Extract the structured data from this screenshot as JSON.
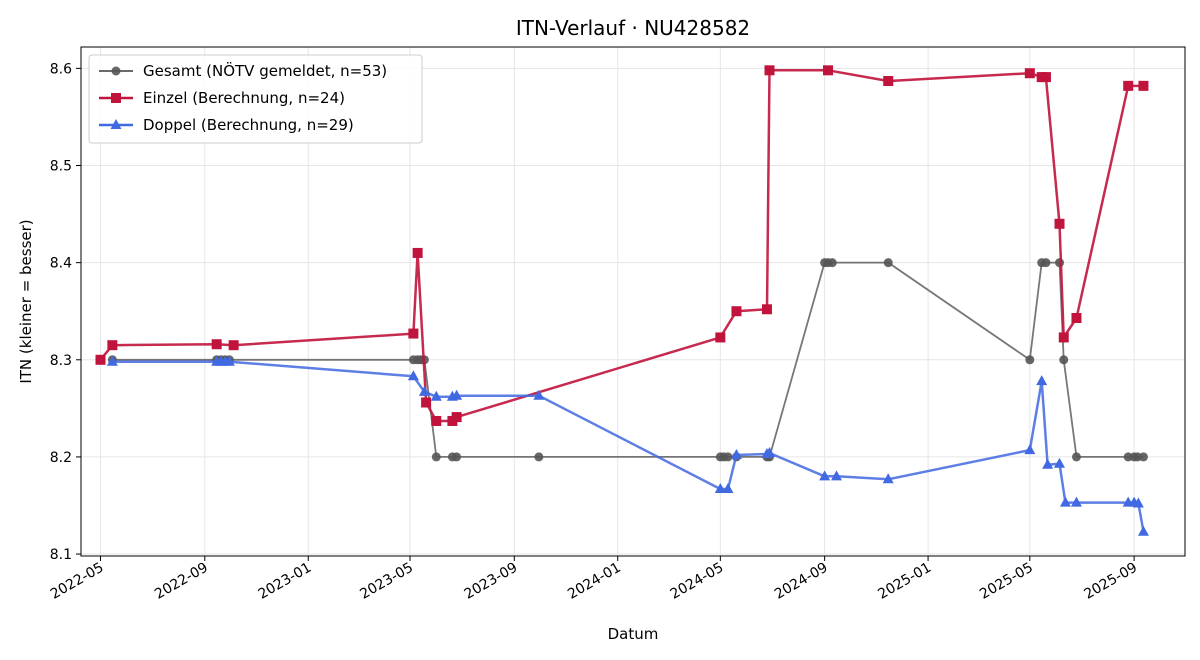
{
  "chart_data": {
    "type": "line",
    "title": "ITN-Verlauf · NU428582",
    "xlabel": "Datum",
    "ylabel": "ITN  (kleiner = besser)",
    "x_axis_type": "date",
    "xlim": [
      "2022-04-08",
      "2025-10-31"
    ],
    "ylim": [
      8.098,
      8.622
    ],
    "grid": true,
    "legend_position": "top-left",
    "x_ticks": [
      {
        "date": "2022-05-01",
        "label": "2022-05"
      },
      {
        "date": "2022-09-01",
        "label": "2022-09"
      },
      {
        "date": "2023-01-01",
        "label": "2023-01"
      },
      {
        "date": "2023-05-01",
        "label": "2023-05"
      },
      {
        "date": "2023-09-01",
        "label": "2023-09"
      },
      {
        "date": "2024-01-01",
        "label": "2024-01"
      },
      {
        "date": "2024-05-01",
        "label": "2024-05"
      },
      {
        "date": "2024-09-01",
        "label": "2024-09"
      },
      {
        "date": "2025-01-01",
        "label": "2025-01"
      },
      {
        "date": "2025-05-01",
        "label": "2025-05"
      },
      {
        "date": "2025-09-01",
        "label": "2025-09"
      }
    ],
    "y_ticks": [
      {
        "value": 8.1,
        "label": "8.1"
      },
      {
        "value": 8.2,
        "label": "8.2"
      },
      {
        "value": 8.3,
        "label": "8.3"
      },
      {
        "value": 8.4,
        "label": "8.4"
      },
      {
        "value": 8.5,
        "label": "8.5"
      },
      {
        "value": 8.6,
        "label": "8.6"
      }
    ],
    "series": [
      {
        "name": "Gesamt (NÖTV gemeldet, n=53)",
        "color": "#555555",
        "marker": "circle",
        "points": [
          [
            "2022-05-15",
            8.3
          ],
          [
            "2022-09-15",
            8.3
          ],
          [
            "2022-09-20",
            8.3
          ],
          [
            "2022-09-25",
            8.3
          ],
          [
            "2022-09-30",
            8.3
          ],
          [
            "2023-05-05",
            8.3
          ],
          [
            "2023-05-10",
            8.3
          ],
          [
            "2023-05-14",
            8.3
          ],
          [
            "2023-05-18",
            8.3
          ],
          [
            "2023-06-01",
            8.2
          ],
          [
            "2023-06-20",
            8.2
          ],
          [
            "2023-06-25",
            8.2
          ],
          [
            "2023-09-30",
            8.2
          ],
          [
            "2024-05-01",
            8.2
          ],
          [
            "2024-05-05",
            8.2
          ],
          [
            "2024-05-10",
            8.2
          ],
          [
            "2024-05-20",
            8.2
          ],
          [
            "2024-06-25",
            8.2
          ],
          [
            "2024-06-28",
            8.2
          ],
          [
            "2024-09-01",
            8.4
          ],
          [
            "2024-09-05",
            8.4
          ],
          [
            "2024-09-10",
            8.4
          ],
          [
            "2024-11-15",
            8.4
          ],
          [
            "2025-05-01",
            8.3
          ],
          [
            "2025-05-15",
            8.4
          ],
          [
            "2025-05-20",
            8.4
          ],
          [
            "2025-06-05",
            8.4
          ],
          [
            "2025-06-10",
            8.3
          ],
          [
            "2025-06-25",
            8.2
          ],
          [
            "2025-08-25",
            8.2
          ],
          [
            "2025-09-01",
            8.2
          ],
          [
            "2025-09-05",
            8.2
          ],
          [
            "2025-09-12",
            8.2
          ]
        ]
      },
      {
        "name": "Einzel (Berechnung, n=24)",
        "color": "#c0143c",
        "marker": "square",
        "points": [
          [
            "2022-05-01",
            8.3
          ],
          [
            "2022-05-15",
            8.315
          ],
          [
            "2022-09-15",
            8.316
          ],
          [
            "2022-10-05",
            8.315
          ],
          [
            "2023-05-05",
            8.327
          ],
          [
            "2023-05-10",
            8.41
          ],
          [
            "2023-05-20",
            8.256
          ],
          [
            "2023-06-01",
            8.237
          ],
          [
            "2023-06-20",
            8.237
          ],
          [
            "2023-06-25",
            8.241
          ],
          [
            "2024-05-01",
            8.323
          ],
          [
            "2024-05-20",
            8.35
          ],
          [
            "2024-06-25",
            8.352
          ],
          [
            "2024-06-28",
            8.598
          ],
          [
            "2024-09-05",
            8.598
          ],
          [
            "2024-11-15",
            8.587
          ],
          [
            "2025-05-01",
            8.595
          ],
          [
            "2025-05-15",
            8.591
          ],
          [
            "2025-05-20",
            8.591
          ],
          [
            "2025-06-05",
            8.44
          ],
          [
            "2025-06-10",
            8.323
          ],
          [
            "2025-06-25",
            8.343
          ],
          [
            "2025-08-25",
            8.582
          ],
          [
            "2025-09-12",
            8.582
          ]
        ]
      },
      {
        "name": "Doppel (Berechnung, n=29)",
        "color": "#4169e1",
        "marker": "triangle",
        "points": [
          [
            "2022-05-15",
            8.298
          ],
          [
            "2022-09-15",
            8.298
          ],
          [
            "2022-09-20",
            8.298
          ],
          [
            "2022-09-25",
            8.298
          ],
          [
            "2022-09-30",
            8.298
          ],
          [
            "2023-05-05",
            8.283
          ],
          [
            "2023-05-18",
            8.267
          ],
          [
            "2023-06-01",
            8.262
          ],
          [
            "2023-06-20",
            8.262
          ],
          [
            "2023-06-25",
            8.263
          ],
          [
            "2023-09-30",
            8.263
          ],
          [
            "2024-05-01",
            8.167
          ],
          [
            "2024-05-10",
            8.167
          ],
          [
            "2024-05-20",
            8.202
          ],
          [
            "2024-06-25",
            8.203
          ],
          [
            "2024-06-28",
            8.204
          ],
          [
            "2024-09-01",
            8.18
          ],
          [
            "2024-09-15",
            8.18
          ],
          [
            "2024-11-15",
            8.177
          ],
          [
            "2025-05-01",
            8.207
          ],
          [
            "2025-05-15",
            8.278
          ],
          [
            "2025-05-22",
            8.192
          ],
          [
            "2025-06-05",
            8.193
          ],
          [
            "2025-06-12",
            8.153
          ],
          [
            "2025-06-25",
            8.153
          ],
          [
            "2025-08-25",
            8.153
          ],
          [
            "2025-09-01",
            8.153
          ],
          [
            "2025-09-06",
            8.152
          ],
          [
            "2025-09-12",
            8.123
          ]
        ]
      }
    ]
  }
}
